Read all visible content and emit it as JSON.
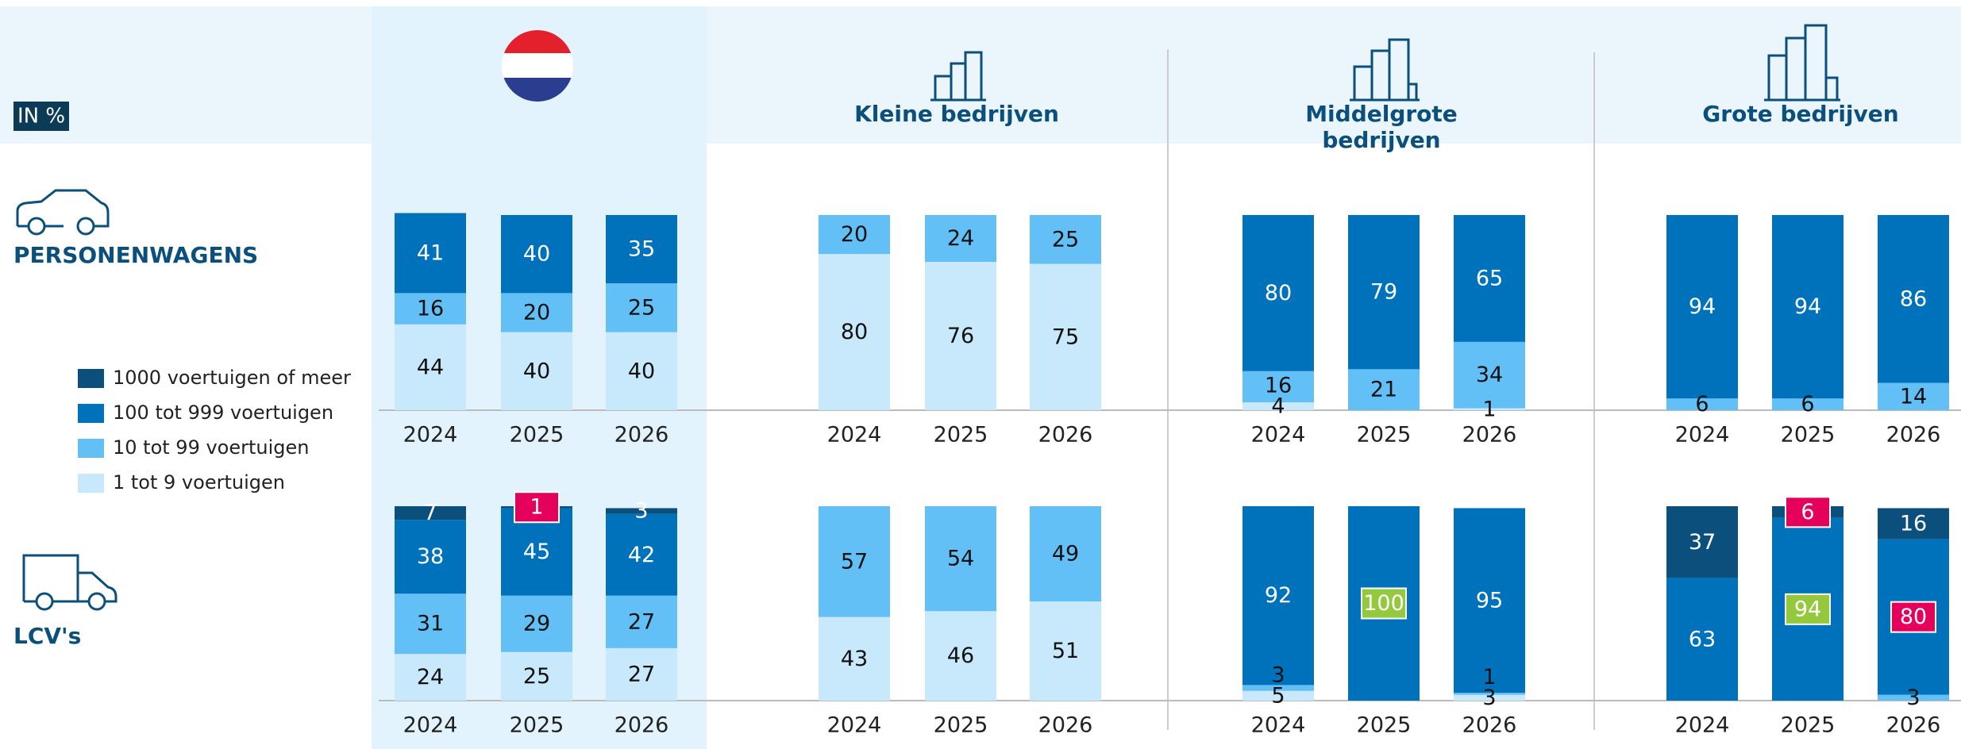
{
  "unit_label": "IN %",
  "groups": [
    {
      "title": "Kleine bedrijven"
    },
    {
      "title": "Middelgrote",
      "title_line2": "bedrijven"
    },
    {
      "title": "Grote bedrijven"
    }
  ],
  "rows": [
    "PERSONENWAGENS",
    "LCV's"
  ],
  "chart_data": [
    {
      "type": "bar",
      "stacked": true,
      "ylim": [
        0,
        100
      ],
      "categories": [
        "2024",
        "2025",
        "2026"
      ],
      "series": [
        {
          "name": "1 tot 9 voertuigen",
          "color": "#c8e9fc",
          "label_color": "#111",
          "values": [
            44,
            40,
            40
          ]
        },
        {
          "name": "10 tot 99 voertuigen",
          "color": "#62c0f6",
          "label_color": "#111",
          "values": [
            16,
            20,
            25
          ]
        },
        {
          "name": "100 tot 999 voertuigen",
          "color": "#0072bc",
          "label_color": "#fff",
          "values": [
            41,
            40,
            35
          ]
        },
        {
          "name": "1000 voertuigen of meer",
          "color": "#0b4f7c",
          "label_color": "#fff",
          "values": [
            null,
            null,
            null
          ]
        }
      ]
    },
    {
      "type": "bar",
      "stacked": true,
      "ylim": [
        0,
        100
      ],
      "categories": [
        "2024",
        "2025",
        "2026"
      ],
      "series": [
        {
          "name": "1 tot 9 voertuigen",
          "color": "#c8e9fc",
          "label_color": "#111",
          "values": [
            24,
            25,
            27
          ]
        },
        {
          "name": "10 tot 99 voertuigen",
          "color": "#62c0f6",
          "label_color": "#111",
          "values": [
            31,
            29,
            27
          ]
        },
        {
          "name": "100 tot 999 voertuigen",
          "color": "#0072bc",
          "label_color": "#fff",
          "values": [
            38,
            45,
            42
          ]
        },
        {
          "name": "1000 voertuigen of meer",
          "color": "#0b4f7c",
          "label_color": "#fff",
          "values": [
            7,
            1,
            3
          ],
          "label_box": [
            null,
            "#e5005b",
            null
          ]
        }
      ]
    },
    {
      "type": "bar",
      "stacked": true,
      "ylim": [
        0,
        100
      ],
      "categories": [
        "2024",
        "2025",
        "2026"
      ],
      "series": [
        {
          "name": "1 tot 9 voertuigen",
          "color": "#c8e9fc",
          "label_color": "#111",
          "values": [
            80,
            76,
            75
          ]
        },
        {
          "name": "10 tot 99 voertuigen",
          "color": "#62c0f6",
          "label_color": "#111",
          "values": [
            20,
            24,
            25
          ]
        },
        {
          "name": "100 tot 999 voertuigen",
          "color": "#0072bc",
          "label_color": "#fff",
          "values": [
            null,
            null,
            null
          ]
        },
        {
          "name": "1000 voertuigen of meer",
          "color": "#0b4f7c",
          "label_color": "#fff",
          "values": [
            null,
            null,
            null
          ]
        }
      ]
    },
    {
      "type": "bar",
      "stacked": true,
      "ylim": [
        0,
        100
      ],
      "categories": [
        "2024",
        "2025",
        "2026"
      ],
      "series": [
        {
          "name": "1 tot 9 voertuigen",
          "color": "#c8e9fc",
          "label_color": "#111",
          "values": [
            43,
            46,
            51
          ]
        },
        {
          "name": "10 tot 99 voertuigen",
          "color": "#62c0f6",
          "label_color": "#111",
          "values": [
            57,
            54,
            49
          ]
        },
        {
          "name": "100 tot 999 voertuigen",
          "color": "#0072bc",
          "label_color": "#fff",
          "values": [
            null,
            null,
            null
          ]
        },
        {
          "name": "1000 voertuigen of meer",
          "color": "#0b4f7c",
          "label_color": "#fff",
          "values": [
            null,
            null,
            null
          ]
        }
      ]
    },
    {
      "type": "bar",
      "stacked": true,
      "ylim": [
        0,
        100
      ],
      "categories": [
        "2024",
        "2025",
        "2026"
      ],
      "series": [
        {
          "name": "1 tot 9 voertuigen",
          "color": "#c8e9fc",
          "label_color": "#111",
          "values": [
            4,
            null,
            1
          ]
        },
        {
          "name": "10 tot 99 voertuigen",
          "color": "#62c0f6",
          "label_color": "#111",
          "values": [
            16,
            21,
            34
          ]
        },
        {
          "name": "100 tot 999 voertuigen",
          "color": "#0072bc",
          "label_color": "#fff",
          "values": [
            80,
            79,
            65
          ]
        },
        {
          "name": "1000 voertuigen of meer",
          "color": "#0b4f7c",
          "label_color": "#fff",
          "values": [
            null,
            null,
            null
          ]
        }
      ]
    },
    {
      "type": "bar",
      "stacked": true,
      "ylim": [
        0,
        100
      ],
      "categories": [
        "2024",
        "2025",
        "2026"
      ],
      "series": [
        {
          "name": "1 tot 9 voertuigen",
          "color": "#c8e9fc",
          "label_color": "#111",
          "values": [
            5,
            null,
            3
          ]
        },
        {
          "name": "10 tot 99 voertuigen",
          "color": "#62c0f6",
          "label_color": "#111",
          "values": [
            3,
            null,
            1
          ]
        },
        {
          "name": "100 tot 999 voertuigen",
          "color": "#0072bc",
          "label_color": "#fff",
          "values": [
            92,
            100,
            95
          ],
          "label_box": [
            null,
            "#95c93d",
            null
          ]
        },
        {
          "name": "1000 voertuigen of meer",
          "color": "#0b4f7c",
          "label_color": "#fff",
          "values": [
            null,
            null,
            null
          ]
        }
      ]
    },
    {
      "type": "bar",
      "stacked": true,
      "ylim": [
        0,
        100
      ],
      "categories": [
        "2024",
        "2025",
        "2026"
      ],
      "series": [
        {
          "name": "1 tot 9 voertuigen",
          "color": "#c8e9fc",
          "label_color": "#111",
          "values": [
            null,
            null,
            null
          ]
        },
        {
          "name": "10 tot 99 voertuigen",
          "color": "#62c0f6",
          "label_color": "#111",
          "values": [
            6,
            6,
            14
          ]
        },
        {
          "name": "100 tot 999 voertuigen",
          "color": "#0072bc",
          "label_color": "#fff",
          "values": [
            94,
            94,
            86
          ]
        },
        {
          "name": "1000 voertuigen of meer",
          "color": "#0b4f7c",
          "label_color": "#fff",
          "values": [
            null,
            null,
            null
          ]
        }
      ]
    },
    {
      "type": "bar",
      "stacked": true,
      "ylim": [
        0,
        100
      ],
      "categories": [
        "2024",
        "2025",
        "2026"
      ],
      "series": [
        {
          "name": "1 tot 9 voertuigen",
          "color": "#c8e9fc",
          "label_color": "#111",
          "values": [
            null,
            null,
            null
          ]
        },
        {
          "name": "10 tot 99 voertuigen",
          "color": "#62c0f6",
          "label_color": "#111",
          "values": [
            null,
            null,
            3
          ]
        },
        {
          "name": "100 tot 999 voertuigen",
          "color": "#0072bc",
          "label_color": "#fff",
          "values": [
            63,
            94,
            80
          ],
          "label_box": [
            null,
            "#95c93d",
            "#e5005b"
          ]
        },
        {
          "name": "1000 voertuigen of meer",
          "color": "#0b4f7c",
          "label_color": "#fff",
          "values": [
            37,
            6,
            16
          ],
          "label_box": [
            null,
            "#e5005b",
            null
          ]
        }
      ]
    }
  ]
}
